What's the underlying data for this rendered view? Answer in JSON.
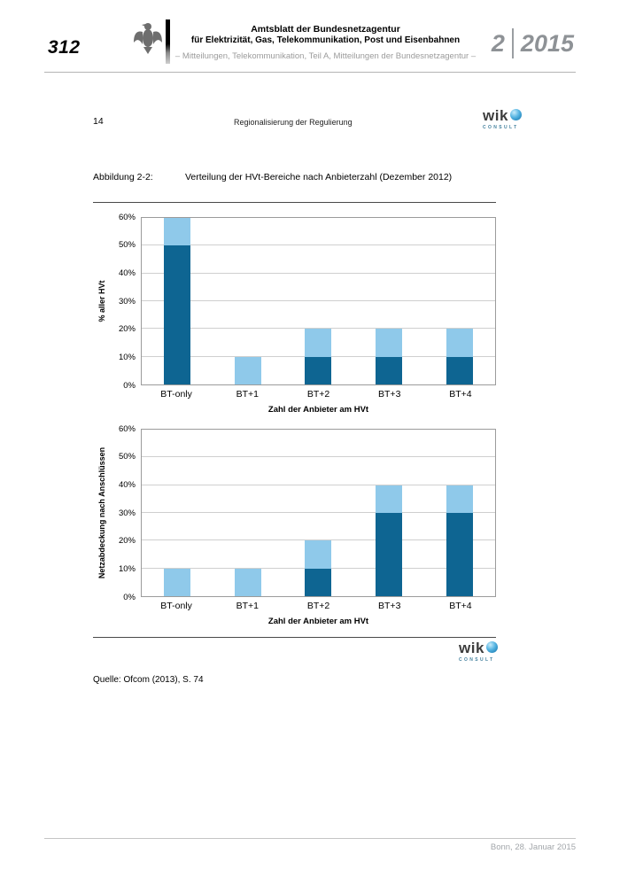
{
  "page": {
    "number": "312"
  },
  "edition": {
    "issue": "2",
    "year": "2015"
  },
  "masthead": {
    "title_line1": "Amtsblatt der Bundesnetzagentur",
    "title_line2": "für Elektrizität, Gas, Telekommunikation, Post und Eisenbahnen",
    "subtitle": "– Mitteilungen, Telekommunikation, Teil A, Mitteilungen der Bundesnetzagentur –"
  },
  "content_head": {
    "page": "14",
    "title": "Regionalisierung der Regulierung"
  },
  "wik_logo": {
    "text": "wik",
    "subtext": "CONSULT"
  },
  "figure": {
    "label": "Abbildung 2-2:",
    "caption": "Verteilung der HVt-Bereiche nach Anbieterzahl (Dezember 2012)"
  },
  "source": {
    "text": "Quelle: Ofcom (2013), S. 74"
  },
  "footer": {
    "text": "Bonn, 28. Januar 2015"
  },
  "colors": {
    "dark_blue": "#0E6592",
    "light_blue": "#8FC9EA"
  },
  "chart_data": [
    {
      "type": "bar",
      "stacked": true,
      "title": "",
      "categories": [
        "BT-only",
        "BT+1",
        "BT+2",
        "BT+3",
        "BT+4"
      ],
      "series": [
        {
          "name": "dark",
          "color": "#0E6592",
          "values": [
            50,
            0,
            10,
            10,
            10
          ]
        },
        {
          "name": "light",
          "color": "#8FC9EA",
          "values": [
            10,
            10,
            10,
            10,
            10
          ]
        }
      ],
      "totals": [
        60,
        10,
        20,
        20,
        20
      ],
      "ylabel": "% aller HVt",
      "xlabel": "Zahl der Anbieter am HVt",
      "ylim": [
        0,
        60
      ],
      "ytick_labels": [
        "0%",
        "10%",
        "20%",
        "30%",
        "40%",
        "50%",
        "60%"
      ],
      "grid": true,
      "legend": "none"
    },
    {
      "type": "bar",
      "stacked": true,
      "title": "",
      "categories": [
        "BT-only",
        "BT+1",
        "BT+2",
        "BT+3",
        "BT+4"
      ],
      "series": [
        {
          "name": "dark",
          "color": "#0E6592",
          "values": [
            0,
            0,
            10,
            30,
            30
          ]
        },
        {
          "name": "light",
          "color": "#8FC9EA",
          "values": [
            10,
            10,
            10,
            10,
            10
          ]
        }
      ],
      "totals": [
        10,
        10,
        20,
        40,
        40
      ],
      "ylabel": "Netzabdeckung nach Anschlüssen",
      "xlabel": "Zahl der Anbieter am HVt",
      "ylim": [
        0,
        60
      ],
      "ytick_labels": [
        "0%",
        "10%",
        "20%",
        "30%",
        "40%",
        "50%",
        "60%"
      ],
      "grid": true,
      "legend": "none"
    }
  ]
}
